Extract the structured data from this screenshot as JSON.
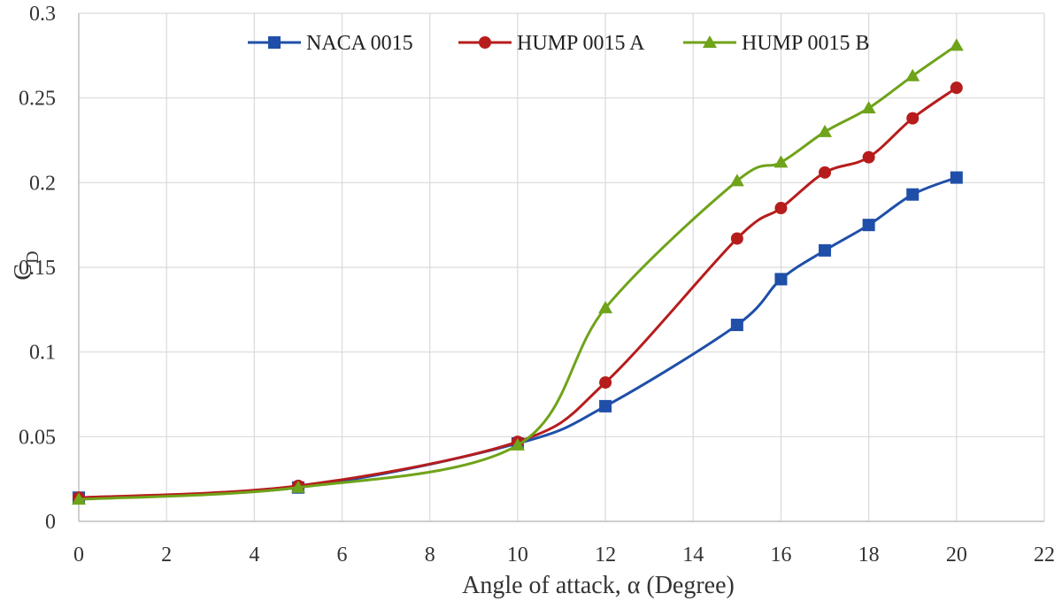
{
  "chart_data": {
    "type": "line",
    "xlabel": "Angle of attack, α (Degree)",
    "ylabel": {
      "main": "C",
      "subscript": "D"
    },
    "xlim": [
      0,
      22
    ],
    "ylim": [
      0,
      0.3
    ],
    "xticks": [
      0,
      2,
      4,
      6,
      8,
      10,
      12,
      14,
      16,
      18,
      20,
      22
    ],
    "yticks": [
      0,
      0.05,
      0.1,
      0.15,
      0.2,
      0.25,
      0.3
    ],
    "xtick_labels": [
      "0",
      "2",
      "4",
      "6",
      "8",
      "10",
      "12",
      "14",
      "16",
      "18",
      "20",
      "22"
    ],
    "ytick_labels": [
      "0",
      "0.05",
      "0.1",
      "0.15",
      "0.2",
      "0.25",
      "0.3"
    ],
    "grid": true,
    "legend_position": "top-center",
    "series": [
      {
        "name": "NACA 0015",
        "color": "#1f4fa8",
        "marker": "square",
        "x": [
          0,
          5,
          10,
          12,
          15,
          16,
          17,
          18,
          19,
          20
        ],
        "y": [
          0.014,
          0.02,
          0.046,
          0.068,
          0.116,
          0.143,
          0.16,
          0.175,
          0.193,
          0.203
        ]
      },
      {
        "name": "HUMP 0015 A",
        "color": "#b71c1c",
        "marker": "circle",
        "x": [
          0,
          5,
          10,
          12,
          15,
          16,
          17,
          18,
          19,
          20
        ],
        "y": [
          0.014,
          0.021,
          0.047,
          0.082,
          0.167,
          0.185,
          0.206,
          0.215,
          0.238,
          0.256
        ]
      },
      {
        "name": "HUMP 0015 B",
        "color": "#6fa31a",
        "marker": "triangle",
        "x": [
          0,
          5,
          10,
          12,
          15,
          16,
          17,
          18,
          19,
          20
        ],
        "y": [
          0.013,
          0.02,
          0.045,
          0.126,
          0.201,
          0.212,
          0.23,
          0.244,
          0.263,
          0.281
        ]
      }
    ]
  }
}
